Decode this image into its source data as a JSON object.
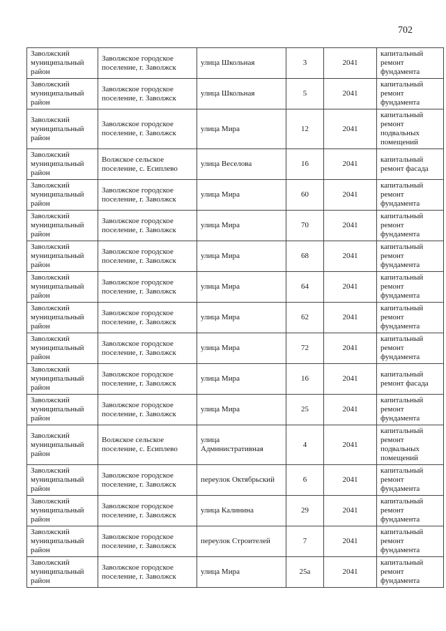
{
  "page": {
    "number": "702"
  },
  "table": {
    "rows": [
      {
        "cells": [
          "Заволжский муниципальный район",
          "Заволжское городское поселение, г. Заволжск",
          "улица Школьная",
          "3",
          "2041",
          "капитальный ремонт фундамента"
        ]
      },
      {
        "cells": [
          "Заволжский муниципальный район",
          "Заволжское городское поселение, г. Заволжск",
          "улица Школьная",
          "5",
          "2041",
          "капитальный ремонт фундамента"
        ]
      },
      {
        "cells": [
          "Заволжский муниципальный район",
          "Заволжское городское поселение, г. Заволжск",
          "улица Мира",
          "12",
          "2041",
          "капитальный ремонт подвальных помещений"
        ]
      },
      {
        "cells": [
          "Заволжский муниципальный район",
          "Волжское сельское поселение, с. Есиплево",
          "улица Веселова",
          "16",
          "2041",
          "капитальный ремонт фасада"
        ]
      },
      {
        "cells": [
          "Заволжский муниципальный район",
          "Заволжское городское поселение, г. Заволжск",
          "улица Мира",
          "60",
          "2041",
          "капитальный ремонт фундамента"
        ]
      },
      {
        "cells": [
          "Заволжский муниципальный район",
          "Заволжское городское поселение, г. Заволжск",
          "улица Мира",
          "70",
          "2041",
          "капитальный ремонт фундамента"
        ]
      },
      {
        "cells": [
          "Заволжский муниципальный район",
          "Заволжское городское поселение, г. Заволжск",
          "улица Мира",
          "68",
          "2041",
          "капитальный ремонт фундамента"
        ]
      },
      {
        "cells": [
          "Заволжский муниципальный район",
          "Заволжское городское поселение, г. Заволжск",
          "улица Мира",
          "64",
          "2041",
          "капитальный ремонт фундамента"
        ]
      },
      {
        "cells": [
          "Заволжский муниципальный район",
          "Заволжское городское поселение, г. Заволжск",
          "улица Мира",
          "62",
          "2041",
          "капитальный ремонт фундамента"
        ]
      },
      {
        "cells": [
          "Заволжский муниципальный район",
          "Заволжское городское поселение, г. Заволжск",
          "улица Мира",
          "72",
          "2041",
          "капитальный ремонт фундамента"
        ]
      },
      {
        "cells": [
          "Заволжский муниципальный район",
          "Заволжское городское поселение, г. Заволжск",
          "улица Мира",
          "16",
          "2041",
          "капитальный ремонт фасада"
        ]
      },
      {
        "cells": [
          "Заволжский муниципальный район",
          "Заволжское городское поселение, г. Заволжск",
          "улица Мира",
          "25",
          "2041",
          "капитальный ремонт фундамента"
        ]
      },
      {
        "cells": [
          "Заволжский муниципальный район",
          "Волжское сельское поселение, с. Есиплево",
          "улица Административная",
          "4",
          "2041",
          "капитальный ремонт подвальных помещений"
        ]
      },
      {
        "cells": [
          "Заволжский муниципальный район",
          "Заволжское городское поселение, г. Заволжск",
          "переулок Октябрьский",
          "6",
          "2041",
          "капитальный ремонт фундамента"
        ]
      },
      {
        "cells": [
          "Заволжский муниципальный район",
          "Заволжское городское поселение, г. Заволжск",
          "улица Калинина",
          "29",
          "2041",
          "капитальный ремонт фундамента"
        ]
      },
      {
        "cells": [
          "Заволжский муниципальный район",
          "Заволжское городское поселение, г. Заволжск",
          "переулок Строителей",
          "7",
          "2041",
          "капитальный ремонт фундамента"
        ]
      },
      {
        "cells": [
          "Заволжский муниципальный район",
          "Заволжское городское поселение, г. Заволжск",
          "улица Мира",
          "25а",
          "2041",
          "капитальный ремонт фундамента"
        ]
      }
    ]
  }
}
